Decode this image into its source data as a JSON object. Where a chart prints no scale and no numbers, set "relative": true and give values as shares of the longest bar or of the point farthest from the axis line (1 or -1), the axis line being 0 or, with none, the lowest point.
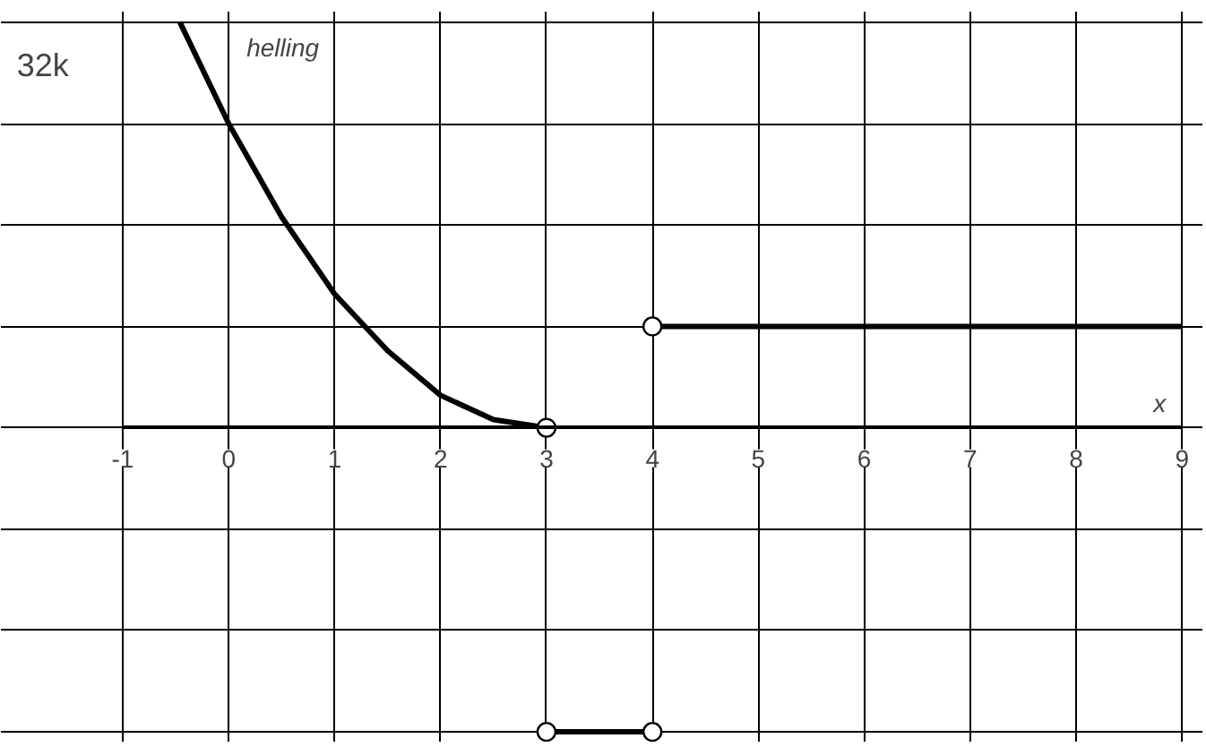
{
  "chart_data": {
    "type": "line",
    "relative": true,
    "xlabel": "x",
    "ylabel": "helling",
    "annotations": [
      "32k"
    ],
    "xlim": [
      -1,
      9
    ],
    "xticks": [
      -1,
      0,
      1,
      2,
      3,
      4,
      5,
      6,
      7,
      8,
      9
    ],
    "grid": true,
    "series": [
      {
        "x": [
          -0.46,
          0,
          0.5,
          1,
          1.5,
          2,
          2.5,
          3
        ],
        "values": [
          1.0,
          0.75,
          0.52,
          0.33,
          0.19,
          0.08,
          0.02,
          0
        ],
        "color": "#000000"
      },
      {
        "x": [
          4,
          9
        ],
        "values": [
          0.25,
          0.25
        ],
        "color": "#000000"
      },
      {
        "x": [
          3,
          4
        ],
        "values": [
          -0.75,
          -0.75
        ],
        "color": "#000000"
      },
      {
        "type": "scatter",
        "x": [
          3,
          4,
          3,
          4
        ],
        "values": [
          0,
          0.25,
          -0.75,
          -0.75
        ],
        "color": "#000000",
        "marker": "circle"
      }
    ]
  }
}
